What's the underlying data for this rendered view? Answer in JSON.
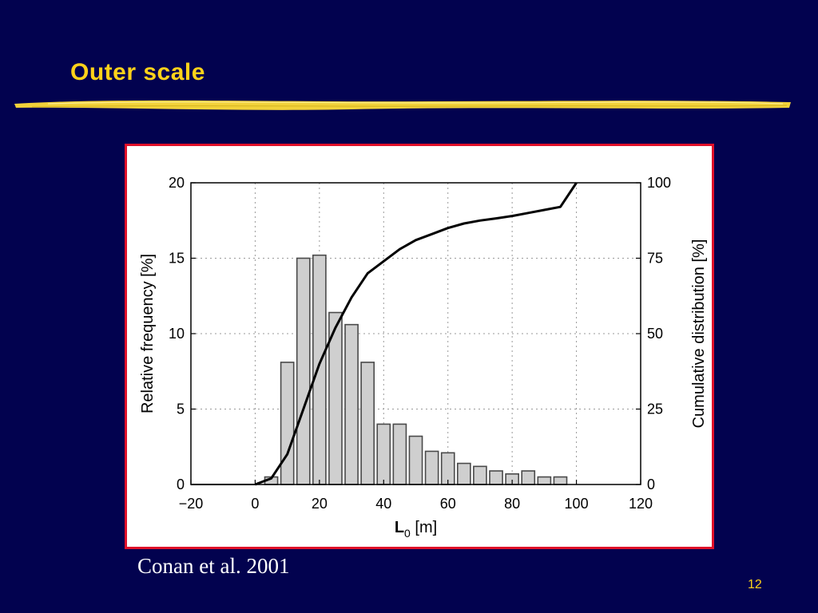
{
  "slide": {
    "title": "Outer scale",
    "citation": "Conan et al. 2001",
    "page_number": "12",
    "title_color": "#ffd21a",
    "background_color": "#02024f",
    "frame_color": "#e0102a"
  },
  "chart_data": {
    "type": "bar",
    "title": "",
    "xlabel_main": "L",
    "xlabel_sub": "0",
    "xlabel_unit": " [m]",
    "ylabel_left": "Relative frequency [%]",
    "ylabel_right": "Cumulative distribution [%]",
    "xlim": [
      -20,
      120
    ],
    "ylim_left": [
      0,
      20
    ],
    "ylim_right": [
      0,
      100
    ],
    "x_ticks": [
      -20,
      0,
      20,
      40,
      60,
      80,
      100,
      120
    ],
    "x_tick_labels": [
      "−20",
      "0",
      "20",
      "40",
      "60",
      "80",
      "100",
      "120"
    ],
    "y_left_ticks": [
      0,
      5,
      10,
      15,
      20
    ],
    "y_left_tick_labels": [
      "0",
      "5",
      "10",
      "15",
      "20"
    ],
    "y_right_ticks": [
      0,
      25,
      50,
      75,
      100
    ],
    "y_right_tick_labels": [
      "0",
      "25",
      "50",
      "75",
      "100"
    ],
    "grid": true,
    "bar_width": 4,
    "series": [
      {
        "axis": "left",
        "kind": "bar",
        "x": [
          5,
          10,
          15,
          20,
          25,
          30,
          35,
          40,
          45,
          50,
          55,
          60,
          65,
          70,
          75,
          80,
          85,
          90,
          95
        ],
        "values": [
          0.5,
          8.1,
          15.0,
          15.2,
          11.4,
          10.6,
          8.1,
          4.0,
          4.0,
          3.2,
          2.2,
          2.1,
          1.4,
          1.2,
          0.9,
          0.7,
          0.9,
          0.5,
          0.5
        ]
      },
      {
        "axis": "right",
        "kind": "line",
        "x": [
          0,
          5,
          10,
          15,
          20,
          25,
          30,
          35,
          40,
          45,
          50,
          55,
          60,
          65,
          70,
          75,
          80,
          85,
          90,
          95,
          100
        ],
        "values": [
          0,
          2,
          10,
          25,
          40,
          52,
          62,
          70,
          74,
          78,
          81,
          83,
          85,
          86.5,
          87.5,
          88.2,
          89,
          90,
          91,
          92,
          100
        ]
      }
    ]
  }
}
